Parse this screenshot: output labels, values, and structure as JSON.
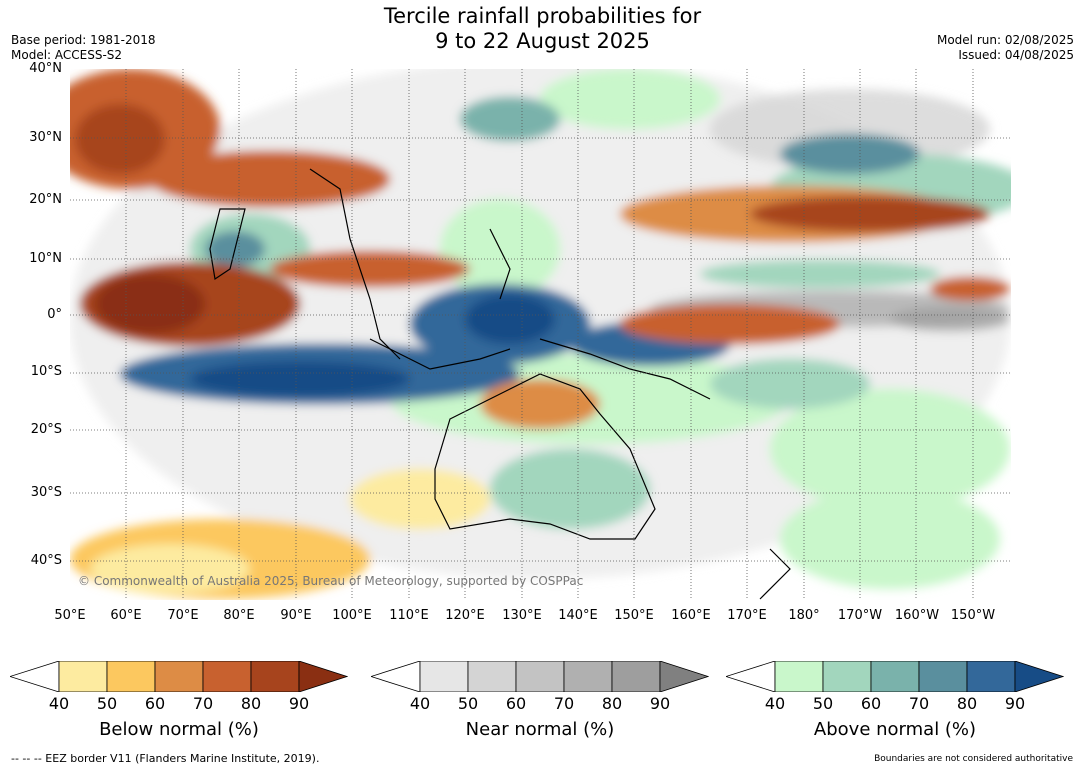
{
  "title_line1": "Tercile rainfall probabilities for",
  "title_line2": "9 to 22 August 2025",
  "base_period": "Base period: 1981-2018",
  "model": "Model: ACCESS-S2",
  "model_run": "Model run: 02/08/2025",
  "issued": "Issued: 04/08/2025",
  "lat_labels": [
    "40°N",
    "30°N",
    "20°N",
    "10°N",
    "0°",
    "10°S",
    "20°S",
    "30°S",
    "40°S"
  ],
  "lon_labels": [
    "50°E",
    "60°E",
    "70°E",
    "80°E",
    "90°E",
    "100°E",
    "110°E",
    "120°E",
    "130°E",
    "140°E",
    "150°E",
    "160°E",
    "170°E",
    "180°",
    "170°W",
    "160°W",
    "150°W"
  ],
  "copyright": "© Commonwealth of Australia 2025, Bureau of Meteorology, supported by COSPPac",
  "colorbars": [
    {
      "label": "Below normal (%)",
      "ticks": [
        "40",
        "50",
        "60",
        "70",
        "80",
        "90"
      ],
      "colors": [
        "#ffffff",
        "#fdeba0",
        "#fcc85f",
        "#dd8c45",
        "#c8612f",
        "#a7441d",
        "#8a2f12"
      ]
    },
    {
      "label": "Near normal (%)",
      "ticks": [
        "40",
        "50",
        "60",
        "70",
        "80",
        "90"
      ],
      "colors": [
        "#ffffff",
        "#e6e6e6",
        "#d4d4d4",
        "#c3c3c3",
        "#b0b0b0",
        "#9e9e9e",
        "#808080"
      ]
    },
    {
      "label": "Above normal (%)",
      "ticks": [
        "40",
        "50",
        "60",
        "70",
        "80",
        "90"
      ],
      "colors": [
        "#ffffff",
        "#c9f7cb",
        "#a2d6bd",
        "#7ab2ab",
        "#5a8f9e",
        "#33689a",
        "#174c86"
      ]
    }
  ],
  "eez_note": "--  --  -- EEZ border V11 (Flanders Marine Institute, 2019).",
  "boundary_note": "Boundaries are not considered authoritative"
}
